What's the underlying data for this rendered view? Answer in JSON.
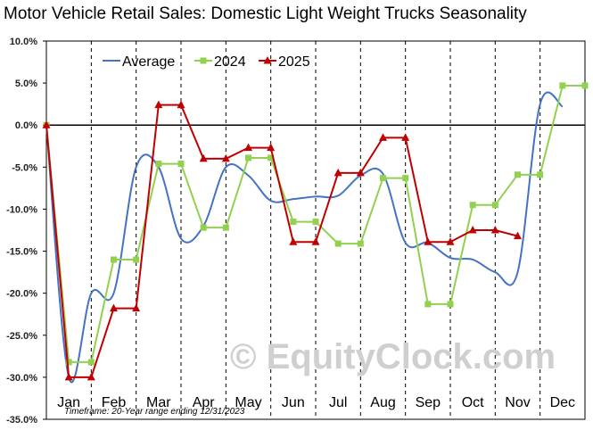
{
  "chart_data": {
    "type": "line",
    "title": "Motor Vehicle Retail Sales: Domestic Light Weight Trucks Seasonality",
    "categories": [
      "Jan",
      "Feb",
      "Mar",
      "Apr",
      "May",
      "Jun",
      "Jul",
      "Aug",
      "Sep",
      "Oct",
      "Nov",
      "Dec"
    ],
    "x": [
      0,
      0.5,
      1,
      1.5,
      2,
      2.5,
      3,
      3.5,
      4,
      4.5,
      5,
      5.5,
      6,
      6.5,
      7,
      7.5,
      8,
      8.5,
      9,
      9.5,
      10,
      10.5,
      11,
      11.5,
      12
    ],
    "y_tick_labels": [
      "10.0%",
      "5.0%",
      "0.0%",
      "-5.0%",
      "-10.0%",
      "-15.0%",
      "-20.0%",
      "-25.0%",
      "-30.0%",
      "-35.0%"
    ],
    "ylim": [
      -35,
      10
    ],
    "grid": "vertical dashed at month boundaries",
    "legend_position": "top-left",
    "series": [
      {
        "name": "Average",
        "color": "#4472c4",
        "marker": "none",
        "values": [
          0.0,
          -30.0,
          -20.0,
          -20.0,
          -5.0,
          -5.0,
          -13.5,
          -12.0,
          -5.0,
          -6.0,
          -9.0,
          -8.8,
          -8.5,
          -8.4,
          -6.0,
          -5.8,
          -14.0,
          -14.0,
          -15.8,
          -16.0,
          -17.5,
          -17.5,
          2.5,
          2.2,
          null
        ]
      },
      {
        "name": "2024",
        "color": "#92d050",
        "marker": "square",
        "values": [
          0.0,
          -28.2,
          -28.2,
          -16.0,
          -16.0,
          -4.6,
          -4.6,
          -12.2,
          -12.2,
          -3.9,
          -3.9,
          -11.5,
          -11.5,
          -14.1,
          -14.1,
          -6.3,
          -6.3,
          -21.3,
          -21.3,
          -9.5,
          -9.5,
          -5.9,
          -5.9,
          4.7,
          4.7
        ]
      },
      {
        "name": "2025",
        "color": "#c00000",
        "marker": "triangle",
        "values": [
          0.0,
          -30.0,
          -30.0,
          -21.8,
          -21.8,
          2.4,
          2.4,
          -4.0,
          -4.0,
          -2.7,
          -2.7,
          -13.9,
          -13.9,
          -5.7,
          -5.7,
          -1.5,
          -1.5,
          -13.9,
          -13.9,
          -12.5,
          -12.5,
          -13.2,
          null,
          null,
          null
        ]
      }
    ],
    "footnote": "Timeframe: 20-Year range ending 12/31/2023",
    "watermark": "© EquityClock.com"
  }
}
